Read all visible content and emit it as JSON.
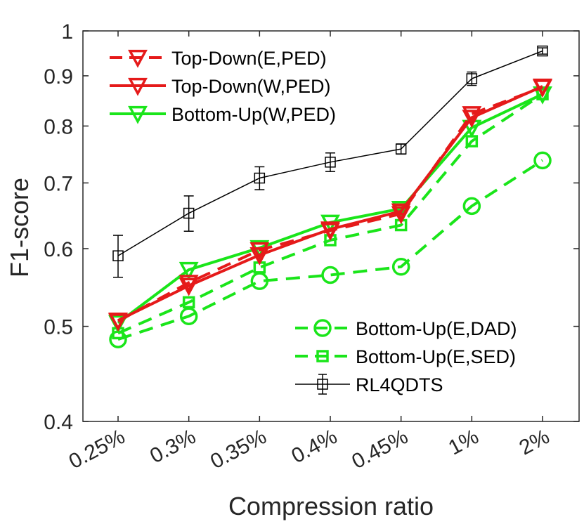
{
  "chart_data": {
    "type": "line",
    "xlabel": "Compression ratio",
    "ylabel": "F1-score",
    "yscale": "log",
    "ylim": [
      0.4,
      1.0
    ],
    "categories": [
      "0.25%",
      "0.3%",
      "0.35%",
      "0.4%",
      "0.45%",
      "1%",
      "2%"
    ],
    "y_ticks": [
      0.4,
      0.5,
      0.6,
      0.7,
      0.8,
      0.9,
      1
    ],
    "y_tick_labels": [
      "0.4",
      "0.5",
      "0.6",
      "0.7",
      "0.8",
      "0.9",
      "1"
    ],
    "series": [
      {
        "name": "Top-Down(E,PED)",
        "color": "#e51a1a",
        "dash": "dashed",
        "marker": "triangle-down",
        "values": [
          0.506,
          0.554,
          0.598,
          0.626,
          0.651,
          0.823,
          0.876
        ]
      },
      {
        "name": "Top-Down(W,PED)",
        "color": "#e51a1a",
        "dash": "solid",
        "marker": "triangle-down",
        "values": [
          0.507,
          0.55,
          0.591,
          0.628,
          0.655,
          0.816,
          0.878
        ]
      },
      {
        "name": "Bottom-Up(W,PED)",
        "color": "#1ae51a",
        "dash": "solid",
        "marker": "triangle-down",
        "values": [
          0.504,
          0.571,
          0.601,
          0.638,
          0.659,
          0.797,
          0.862
        ]
      },
      {
        "name": "Bottom-Up(E,DAD)",
        "color": "#1ae51a",
        "dash": "dashed",
        "marker": "circle",
        "values": [
          0.485,
          0.512,
          0.556,
          0.564,
          0.575,
          0.663,
          0.738
        ]
      },
      {
        "name": "Bottom-Up(E,SED)",
        "color": "#1ae51a",
        "dash": "dashed",
        "marker": "square",
        "values": [
          0.492,
          0.529,
          0.574,
          0.612,
          0.634,
          0.772,
          0.862
        ]
      },
      {
        "name": "RL4QDTS",
        "color": "#000000",
        "dash": "solid",
        "marker": "square",
        "values": [
          0.59,
          0.652,
          0.708,
          0.735,
          0.758,
          0.894,
          0.954
        ],
        "errors": [
          0.029,
          0.027,
          0.019,
          0.016,
          0.009,
          0.014,
          0.007
        ]
      }
    ],
    "legends": [
      {
        "position": "top-left",
        "entries": [
          "Top-Down(E,PED)",
          "Top-Down(W,PED)",
          "Bottom-Up(W,PED)"
        ]
      },
      {
        "position": "bottom-right",
        "entries": [
          "Bottom-Up(E,DAD)",
          "Bottom-Up(E,SED)",
          "RL4QDTS"
        ]
      }
    ]
  }
}
